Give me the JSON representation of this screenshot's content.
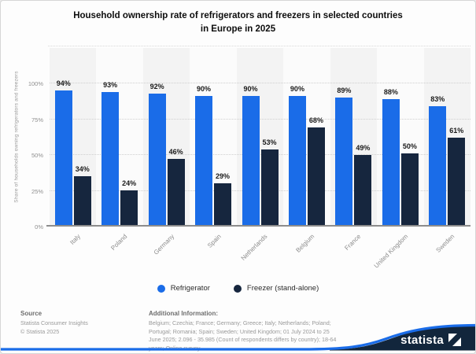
{
  "title": {
    "line1": "Household ownership rate of refrigerators and freezers in selected countries",
    "line2": "in Europe in 2025"
  },
  "chart_data": {
    "type": "bar",
    "title": "Household ownership rate of refrigerators and freezers in selected countries in Europe in 2025",
    "categories": [
      "Italy",
      "Poland",
      "Germany",
      "Spain",
      "Netherlands",
      "Belgium",
      "France",
      "United Kingdom",
      "Sweden"
    ],
    "series": [
      {
        "name": "Refrigerator",
        "color": "#1a6ce8",
        "values": [
          94,
          93,
          92,
          90,
          90,
          90,
          89,
          88,
          83
        ]
      },
      {
        "name": "Freezer (stand-alone)",
        "color": "#16263e",
        "values": [
          34,
          24,
          46,
          29,
          53,
          68,
          49,
          50,
          61
        ]
      }
    ],
    "value_suffix": "%",
    "ylabel": "Share of households owning refrigerators and freezers",
    "xlabel": "",
    "ylim": [
      0,
      100
    ],
    "yticks": [
      {
        "label": "0%",
        "value": 0
      },
      {
        "label": "25%",
        "value": 25
      },
      {
        "label": "50%",
        "value": 50
      },
      {
        "label": "75%",
        "value": 75
      },
      {
        "label": "100%",
        "value": 100
      }
    ],
    "grid": "horizontal-dotted",
    "legend_position": "bottom"
  },
  "legend": {
    "items": [
      {
        "label": "Refrigerator",
        "color": "#1a6ce8"
      },
      {
        "label": "Freezer (stand-alone)",
        "color": "#16263e"
      }
    ]
  },
  "footer": {
    "source": {
      "heading": "Source",
      "lines": [
        "Statista Consumer Insights",
        "© Statista 2025"
      ]
    },
    "additional_information": {
      "heading": "Additional Information:",
      "lines": [
        "Belgium; Czechia; France; Germany; Greece; Italy; Netherlands; Poland;",
        "Portugal; Romania; Spain; Sweden; United Kingdom; 01 July 2024 to 25",
        "June 2025; 2.096 - 35.985 (Count of respondents differs by country); 18-64",
        "years; Online survey"
      ]
    },
    "logo_text": "statista"
  },
  "colors": {
    "refrigerator_blue": "#1a6ce8",
    "freezer_navy": "#16263e",
    "wave_navy": "#12263c",
    "stripe_dark": "#f3f3f3",
    "stripe_light": "#fbfbfb"
  }
}
